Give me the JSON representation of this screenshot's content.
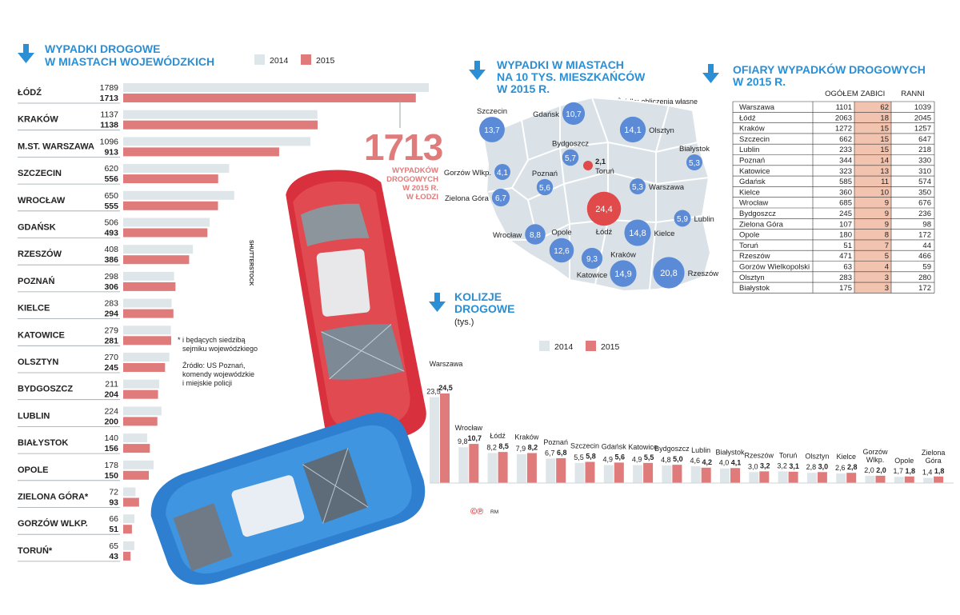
{
  "colors": {
    "accent": "#2a8fd4",
    "y2014": "#dfe6ea",
    "y2015": "#e07b7b",
    "bubble": "#5b8bd6",
    "bubble_red": "#e04a4a",
    "table_hl": "#f2c4b0"
  },
  "left_chart": {
    "title_line1": "WYPADKI DROGOWE",
    "title_line2": "W MIASTACH WOJEWÓDZKICH",
    "legend": [
      "2014",
      "2015"
    ],
    "note_line1": "* i będących siedzibą",
    "note_line2": "sejmiku wojewódzkiego",
    "source_line1": "Źródło: US Poznań,",
    "source_line2": "komendy wojewódzkie",
    "source_line3": "i miejskie policji",
    "photo_credit": "SHUTTERSTOCK",
    "highlight_number": "1713",
    "highlight_line1": "WYPADKÓW",
    "highlight_line2": "DROGOWYCH",
    "highlight_line3": "W 2015 R.",
    "highlight_line4": "W ŁODZI"
  },
  "map": {
    "title_line1": "WYPADKI W MIASTACH",
    "title_line2": "NA 10 TYS. MIESZKAŃCÓW",
    "title_line3": "W 2015 R.",
    "source": "Źródło: obliczenia własne",
    "cities": [
      {
        "name": "Szczecin",
        "value": "13,7"
      },
      {
        "name": "Gdańsk",
        "value": "10,7"
      },
      {
        "name": "Olsztyn",
        "value": "14,1"
      },
      {
        "name": "Białystok",
        "value": "5,3"
      },
      {
        "name": "Bydgoszcz",
        "value": "5,7"
      },
      {
        "name": "Toruń",
        "value": "2,1"
      },
      {
        "name": "Gorzów Wlkp.",
        "value": "4,1"
      },
      {
        "name": "Poznań",
        "value": "5,6"
      },
      {
        "name": "Warszawa",
        "value": "5,3"
      },
      {
        "name": "Zielona Góra",
        "value": "6,7"
      },
      {
        "name": "Łódź",
        "value": "24,4"
      },
      {
        "name": "Lublin",
        "value": "5,9"
      },
      {
        "name": "Wrocław",
        "value": "8,8"
      },
      {
        "name": "Opole",
        "value": "12,6"
      },
      {
        "name": "Kielce",
        "value": "14,8"
      },
      {
        "name": "Katowice",
        "value": "9,3"
      },
      {
        "name": "Kraków",
        "value": "14,9"
      },
      {
        "name": "Rzeszów",
        "value": "20,8"
      }
    ]
  },
  "table": {
    "title_line1": "OFIARY WYPADKÓW DROGOWYCH",
    "title_line2": "W 2015 R.",
    "headers": [
      "OGÓŁEM",
      "ZABICI",
      "RANNI"
    ],
    "rows": [
      [
        "Warszawa",
        "1101",
        "62",
        "1039"
      ],
      [
        "Łódź",
        "2063",
        "18",
        "2045"
      ],
      [
        "Kraków",
        "1272",
        "15",
        "1257"
      ],
      [
        "Szczecin",
        "662",
        "15",
        "647"
      ],
      [
        "Lublin",
        "233",
        "15",
        "218"
      ],
      [
        "Poznań",
        "344",
        "14",
        "330"
      ],
      [
        "Katowice",
        "323",
        "13",
        "310"
      ],
      [
        "Gdańsk",
        "585",
        "11",
        "574"
      ],
      [
        "Kielce",
        "360",
        "10",
        "350"
      ],
      [
        "Wrocław",
        "685",
        "9",
        "676"
      ],
      [
        "Bydgoszcz",
        "245",
        "9",
        "236"
      ],
      [
        "Zielona Góra",
        "107",
        "9",
        "98"
      ],
      [
        "Opole",
        "180",
        "8",
        "172"
      ],
      [
        "Toruń",
        "51",
        "7",
        "44"
      ],
      [
        "Rzeszów",
        "471",
        "5",
        "466"
      ],
      [
        "Gorzów Wielkopolski",
        "63",
        "4",
        "59"
      ],
      [
        "Olsztyn",
        "283",
        "3",
        "280"
      ],
      [
        "Białystok",
        "175",
        "3",
        "172"
      ]
    ]
  },
  "collisions": {
    "title_line1": "KOLIZJE",
    "title_line2": "DROGOWE",
    "unit": "(tys.)",
    "legend": [
      "2014",
      "2015"
    ],
    "footer_mark": "©℗",
    "footer_initials": "RM"
  },
  "chart_data": [
    {
      "type": "bar",
      "title": "WYPADKI DROGOWE W MIASTACH WOJEWÓDZKICH",
      "categories": [
        "ŁÓDŹ",
        "KRAKÓW",
        "M.ST. WARSZAWA",
        "SZCZECIN",
        "WROCŁAW",
        "GDAŃSK",
        "RZESZÓW",
        "POZNAŃ",
        "KIELCE",
        "KATOWICE",
        "OLSZTYN",
        "BYDGOSZCZ",
        "LUBLIN",
        "BIAŁYSTOK",
        "OPOLE",
        "ZIELONA GÓRA*",
        "GORZÓW WLKP.",
        "TORUŃ*"
      ],
      "series": [
        {
          "name": "2014",
          "values": [
            1789,
            1137,
            1096,
            620,
            650,
            506,
            408,
            298,
            283,
            279,
            270,
            211,
            224,
            140,
            178,
            72,
            66,
            65
          ]
        },
        {
          "name": "2015",
          "values": [
            1713,
            1138,
            913,
            556,
            555,
            493,
            386,
            306,
            294,
            281,
            245,
            204,
            200,
            156,
            150,
            93,
            51,
            43
          ]
        }
      ],
      "xlim": [
        0,
        1789
      ]
    },
    {
      "type": "bar",
      "title": "KOLIZJE DROGOWE",
      "ylabel": "(tys.)",
      "categories": [
        "Warszawa",
        "Wrocław",
        "Łódź",
        "Kraków",
        "Poznań",
        "Szczecin",
        "Gdańsk",
        "Katowice",
        "Bydgoszcz",
        "Lublin",
        "Białystok",
        "Rzeszów",
        "Toruń",
        "Olsztyn",
        "Kielce",
        "Gorzów Wlkp.",
        "Opole",
        "Zielona Góra"
      ],
      "series": [
        {
          "name": "2014",
          "values": [
            23.5,
            9.8,
            8.2,
            7.9,
            6.7,
            5.5,
            4.9,
            4.9,
            4.8,
            4.6,
            4.0,
            3.0,
            3.2,
            2.8,
            2.6,
            2.0,
            1.7,
            1.4
          ]
        },
        {
          "name": "2015",
          "values": [
            24.5,
            10.7,
            8.5,
            8.2,
            6.8,
            5.8,
            5.6,
            5.5,
            5.0,
            4.2,
            4.1,
            3.2,
            3.1,
            3.0,
            2.8,
            2.0,
            1.8,
            1.8
          ]
        }
      ],
      "value_labels_2014": [
        "23,5",
        "9,8",
        "8,2",
        "7,9",
        "6,7",
        "5,5",
        "4,9",
        "4,9",
        "4,8",
        "4,6",
        "4,0",
        "3,0",
        "3,2",
        "2,8",
        "2,6",
        "2,0",
        "1,7",
        "1,4"
      ],
      "value_labels_2015": [
        "24,5",
        "10,7",
        "8,5",
        "8,2",
        "6,8",
        "5,8",
        "5,6",
        "5,5",
        "5,0",
        "4,2",
        "4,1",
        "3,2",
        "3,1",
        "3,0",
        "2,8",
        "2,0",
        "1,8",
        "1,8"
      ],
      "ylim": [
        0,
        24.5
      ]
    }
  ]
}
